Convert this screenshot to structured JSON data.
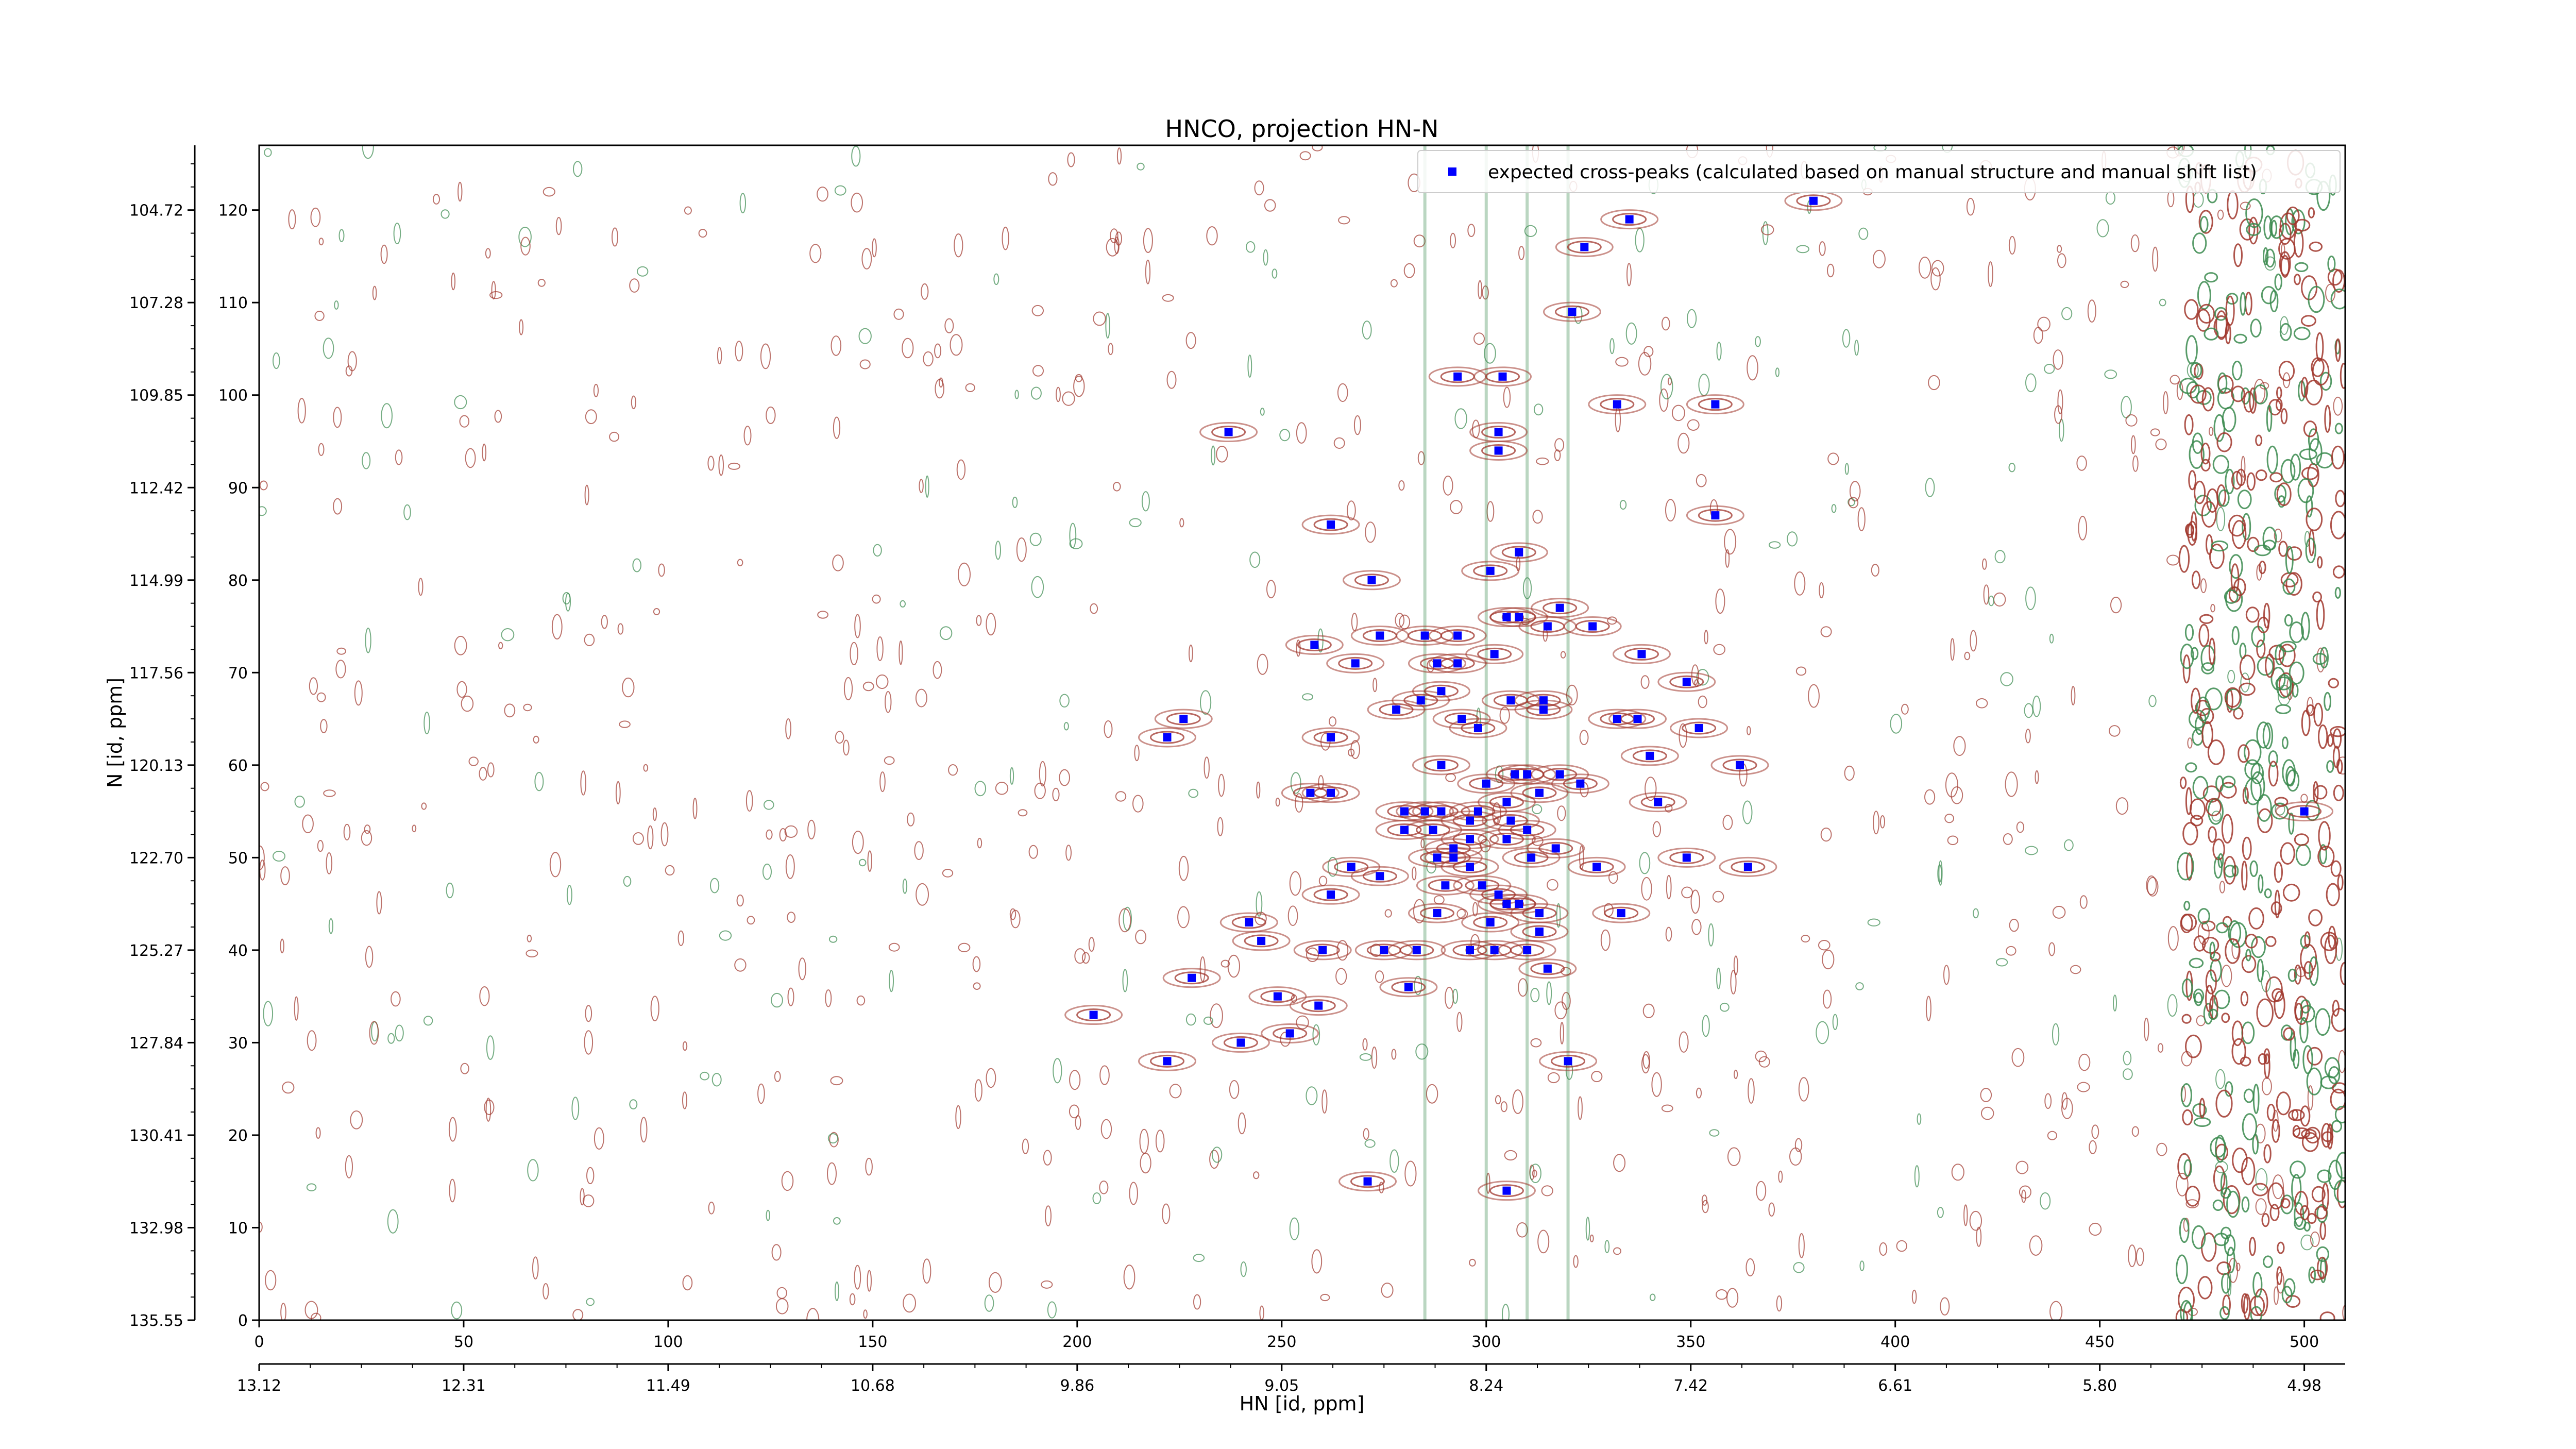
{
  "chart_data": {
    "type": "scatter",
    "title": "HNCO, projection HN-N",
    "xlabel": "HN [id, ppm]",
    "ylabel": "N [id, ppm]",
    "x_index_ticks": [
      0,
      50,
      100,
      150,
      200,
      250,
      300,
      350,
      400,
      450,
      500
    ],
    "x_ppm_ticks": [
      "13.12",
      "12.31",
      "11.49",
      "10.68",
      "9.86",
      "9.05",
      "8.24",
      "7.42",
      "6.61",
      "5.80",
      "4.98"
    ],
    "y_index_ticks": [
      0,
      10,
      20,
      30,
      40,
      50,
      60,
      70,
      80,
      90,
      100,
      110,
      120
    ],
    "y_ppm_ticks": [
      "135.55",
      "132.98",
      "130.41",
      "127.84",
      "125.27",
      "122.70",
      "120.13",
      "117.56",
      "114.99",
      "112.42",
      "109.85",
      "107.28",
      "104.72"
    ],
    "xlim": [
      0,
      510
    ],
    "ylim": [
      0,
      127
    ],
    "legend": {
      "label": "expected cross-peaks (calculated based on manual structure and manual shift list)",
      "placement": "top-right"
    },
    "colors": {
      "peaks": "#0000ff",
      "contour_positive": "#a0362c",
      "contour_negative": "#3a8a4e"
    },
    "series": [
      {
        "name": "expected cross-peaks (calculated based on manual structure and manual shift list)",
        "points": [
          [
            380,
            121
          ],
          [
            335,
            119
          ],
          [
            324,
            116
          ],
          [
            321,
            109
          ],
          [
            293,
            102
          ],
          [
            304,
            102
          ],
          [
            332,
            99
          ],
          [
            356,
            99
          ],
          [
            237,
            96
          ],
          [
            303,
            96
          ],
          [
            303,
            94
          ],
          [
            262,
            86
          ],
          [
            356,
            87
          ],
          [
            308,
            83
          ],
          [
            272,
            80
          ],
          [
            301,
            81
          ],
          [
            318,
            77
          ],
          [
            315,
            75
          ],
          [
            326,
            75
          ],
          [
            305,
            76
          ],
          [
            308,
            76
          ],
          [
            274,
            74
          ],
          [
            285,
            74
          ],
          [
            293,
            74
          ],
          [
            302,
            72
          ],
          [
            338,
            72
          ],
          [
            258,
            73
          ],
          [
            288,
            71
          ],
          [
            293,
            71
          ],
          [
            268,
            71
          ],
          [
            289,
            68
          ],
          [
            284,
            67
          ],
          [
            294,
            65
          ],
          [
            314,
            67
          ],
          [
            306,
            67
          ],
          [
            349,
            69
          ],
          [
            278,
            66
          ],
          [
            332,
            65
          ],
          [
            262,
            63
          ],
          [
            298,
            64
          ],
          [
            314,
            66
          ],
          [
            337,
            65
          ],
          [
            352,
            64
          ],
          [
            222,
            63
          ],
          [
            226,
            65
          ],
          [
            289,
            60
          ],
          [
            313,
            57
          ],
          [
            323,
            58
          ],
          [
            300,
            58
          ],
          [
            310,
            59
          ],
          [
            307,
            59
          ],
          [
            318,
            59
          ],
          [
            340,
            61
          ],
          [
            257,
            57
          ],
          [
            262,
            57
          ],
          [
            362,
            60
          ],
          [
            280,
            55
          ],
          [
            285,
            55
          ],
          [
            289,
            55
          ],
          [
            296,
            54
          ],
          [
            298,
            55
          ],
          [
            306,
            54
          ],
          [
            305,
            56
          ],
          [
            342,
            56
          ],
          [
            280,
            53
          ],
          [
            287,
            53
          ],
          [
            292,
            51
          ],
          [
            296,
            52
          ],
          [
            305,
            52
          ],
          [
            310,
            53
          ],
          [
            317,
            51
          ],
          [
            288,
            50
          ],
          [
            292,
            50
          ],
          [
            296,
            49
          ],
          [
            311,
            50
          ],
          [
            327,
            49
          ],
          [
            349,
            50
          ],
          [
            364,
            49
          ],
          [
            267,
            49
          ],
          [
            274,
            48
          ],
          [
            290,
            47
          ],
          [
            299,
            47
          ],
          [
            305,
            45
          ],
          [
            303,
            46
          ],
          [
            308,
            45
          ],
          [
            313,
            44
          ],
          [
            313,
            42
          ],
          [
            288,
            44
          ],
          [
            301,
            43
          ],
          [
            333,
            44
          ],
          [
            262,
            46
          ],
          [
            242,
            43
          ],
          [
            245,
            41
          ],
          [
            283,
            40
          ],
          [
            296,
            40
          ],
          [
            302,
            40
          ],
          [
            310,
            40
          ],
          [
            275,
            40
          ],
          [
            260,
            40
          ],
          [
            228,
            37
          ],
          [
            281,
            36
          ],
          [
            315,
            38
          ],
          [
            249,
            35
          ],
          [
            259,
            34
          ],
          [
            240,
            30
          ],
          [
            252,
            31
          ],
          [
            204,
            33
          ],
          [
            222,
            28
          ],
          [
            320,
            28
          ],
          [
            271,
            15
          ],
          [
            305,
            14
          ],
          [
            500,
            55
          ]
        ]
      }
    ]
  }
}
